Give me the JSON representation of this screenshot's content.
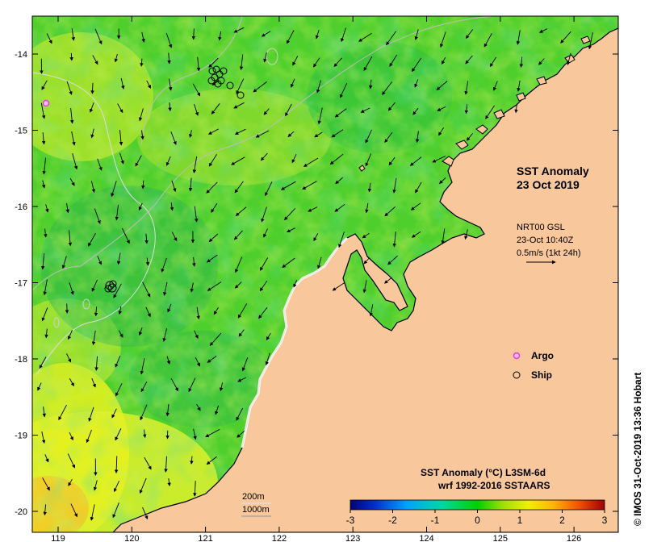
{
  "map": {
    "title_line1": "SST Anomaly",
    "title_line2": "23 Oct 2019",
    "current_info": {
      "source": "NRT00 GSL",
      "time": "23-Oct 10:40Z",
      "scale": "0.5m/s (1kt 24h)"
    },
    "legend": {
      "argo_label": "Argo",
      "ship_label": "Ship",
      "argo_color": "#e23fe2"
    },
    "depth_contours": {
      "label_200": "200m",
      "label_1000": "1000m"
    },
    "colorbar": {
      "title": "SST Anomaly (°C) L3SM-6d",
      "subtitle": "wrf 1992-2016 SSTAARS",
      "min": -3,
      "max": 3,
      "ticks": [
        "-3",
        "-2",
        "-1",
        "0",
        "1",
        "2",
        "3"
      ],
      "colors": [
        "#00007a",
        "#0033cc",
        "#00a0ff",
        "#00d7a0",
        "#00d000",
        "#9ee000",
        "#f0f000",
        "#ffb400",
        "#f05000",
        "#a00000"
      ]
    },
    "axes": {
      "x_ticks": [
        "119",
        "120",
        "121",
        "122",
        "123",
        "124",
        "125",
        "126"
      ],
      "y_ticks": [
        "-14",
        "-15",
        "-16",
        "-17",
        "-18",
        "-19",
        "-20"
      ]
    },
    "colors": {
      "land": "#f9c79c",
      "ocean_base": "#55d02a",
      "coastline": "#000000"
    },
    "credit": "© IMOS 31-Oct-2019 13:36 Hobart"
  }
}
